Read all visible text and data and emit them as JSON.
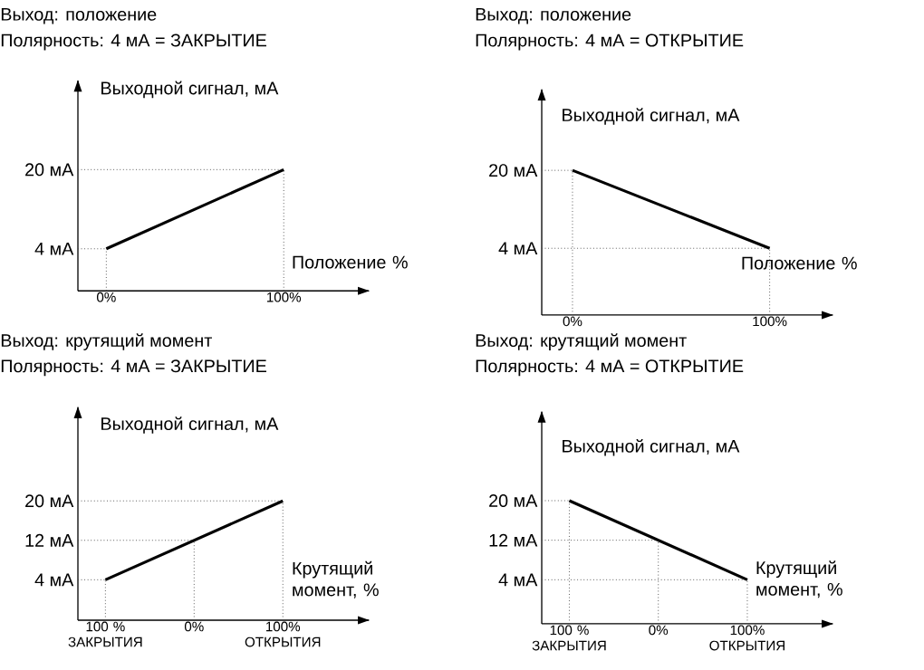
{
  "chart_data": [
    {
      "type": "line",
      "title": "Выход: положение",
      "subtitle": "Полярность: 4 мА = ЗАКРЫТИЕ",
      "ylabel": "Выходной сигнал, мА",
      "xlabel": "Положение %",
      "x": [
        0,
        100
      ],
      "series": [
        {
          "color": "#000000",
          "values": [
            4,
            20
          ]
        }
      ],
      "xlim": [
        -16,
        148
      ],
      "ylim": [
        -4.5,
        38
      ],
      "xticks": [
        {
          "value": 0,
          "label": "0%"
        },
        {
          "value": 100,
          "label": "100%"
        }
      ],
      "yticks": [
        {
          "value": 4,
          "label": "4 мА"
        },
        {
          "value": 20,
          "label": "20 мА"
        }
      ],
      "ref_lines": [
        {
          "axis": "y",
          "value": 4,
          "line_style": "dotted",
          "color": "#444444"
        },
        {
          "axis": "y",
          "value": 20,
          "line_style": "dotted",
          "color": "#444444"
        },
        {
          "axis": "x",
          "value": 0,
          "line_style": "dotted",
          "color": "#444444"
        },
        {
          "axis": "x",
          "value": 100,
          "line_style": "dotted",
          "color": "#444444"
        }
      ]
    },
    {
      "type": "line",
      "title": "Выход: положение",
      "subtitle": "Полярность: 4 мА = ОТКРЫТИЕ",
      "ylabel": "Выходной сигнал, мА",
      "xlabel": "Положение %",
      "x": [
        0,
        100
      ],
      "series": [
        {
          "color": "#000000",
          "values": [
            20,
            4
          ]
        }
      ],
      "xlim": [
        -15.6,
        132
      ],
      "ylim": [
        -9.7,
        36.6
      ],
      "xticks": [
        {
          "value": 0,
          "label": "0%"
        },
        {
          "value": 100,
          "label": "100%"
        }
      ],
      "yticks": [
        {
          "value": 4,
          "label": "4 мА"
        },
        {
          "value": 20,
          "label": "20 мА"
        }
      ],
      "ref_lines": [
        {
          "axis": "y",
          "value": 4,
          "line_style": "dotted",
          "color": "#444444"
        },
        {
          "axis": "y",
          "value": 20,
          "line_style": "dotted",
          "color": "#444444"
        },
        {
          "axis": "x",
          "value": 0,
          "line_style": "dotted",
          "color": "#444444"
        },
        {
          "axis": "x",
          "value": 100,
          "line_style": "dotted",
          "color": "#444444"
        }
      ]
    },
    {
      "type": "line",
      "title": "Выход: крутящий момент",
      "subtitle": "Полярность: 4 мА = ЗАКРЫТИЕ",
      "ylabel": "Выходной сигнал, мА",
      "xlabel": "Крутящий момент, %",
      "x": [
        -100,
        100
      ],
      "series": [
        {
          "color": "#000000",
          "values": [
            4,
            20
          ]
        }
      ],
      "xlim": [
        -131,
        197
      ],
      "ylim": [
        -4.2,
        39
      ],
      "xticks": [
        {
          "value": -100,
          "label": "100 % ЗАКРЫТИЯ"
        },
        {
          "value": 0,
          "label": "0%"
        },
        {
          "value": 100,
          "label": "100% ОТКРЫТИЯ"
        }
      ],
      "yticks": [
        {
          "value": 4,
          "label": "4 мА"
        },
        {
          "value": 12,
          "label": "12 мА"
        },
        {
          "value": 20,
          "label": "20 мА"
        }
      ],
      "ref_lines": [
        {
          "axis": "y",
          "value": 4,
          "line_style": "dotted",
          "color": "#444444"
        },
        {
          "axis": "y",
          "value": 12,
          "line_style": "dotted",
          "color": "#444444"
        },
        {
          "axis": "y",
          "value": 20,
          "line_style": "dotted",
          "color": "#444444"
        },
        {
          "axis": "x",
          "value": -100,
          "line_style": "dotted",
          "color": "#444444"
        },
        {
          "axis": "x",
          "value": 0,
          "line_style": "dotted",
          "color": "#444444"
        },
        {
          "axis": "x",
          "value": 100,
          "line_style": "dotted",
          "color": "#444444"
        }
      ]
    },
    {
      "type": "line",
      "title": "Выход: крутящий момент",
      "subtitle": "Полярность: 4 мА = ОТКРЫТИЕ",
      "ylabel": "Выходной сигнал, мА",
      "xlabel": "Крутящий момент, %",
      "x": [
        -100,
        100
      ],
      "series": [
        {
          "color": "#000000",
          "values": [
            20,
            4
          ]
        }
      ],
      "xlim": [
        -131,
        196
      ],
      "ylim": [
        -4.9,
        38
      ],
      "xticks": [
        {
          "value": -100,
          "label": "100 % ЗАКРЫТИЯ"
        },
        {
          "value": 0,
          "label": "0%"
        },
        {
          "value": 100,
          "label": "100% ОТКРЫТИЯ"
        }
      ],
      "yticks": [
        {
          "value": 4,
          "label": "4 мА"
        },
        {
          "value": 12,
          "label": "12 мА"
        },
        {
          "value": 20,
          "label": "20 мА"
        }
      ],
      "ref_lines": [
        {
          "axis": "y",
          "value": 4,
          "line_style": "dotted",
          "color": "#444444"
        },
        {
          "axis": "y",
          "value": 12,
          "line_style": "dotted",
          "color": "#444444"
        },
        {
          "axis": "y",
          "value": 20,
          "line_style": "dotted",
          "color": "#444444"
        },
        {
          "axis": "x",
          "value": -100,
          "line_style": "dotted",
          "color": "#444444"
        },
        {
          "axis": "x",
          "value": 0,
          "line_style": "dotted",
          "color": "#444444"
        },
        {
          "axis": "x",
          "value": 100,
          "line_style": "dotted",
          "color": "#444444"
        }
      ]
    }
  ]
}
